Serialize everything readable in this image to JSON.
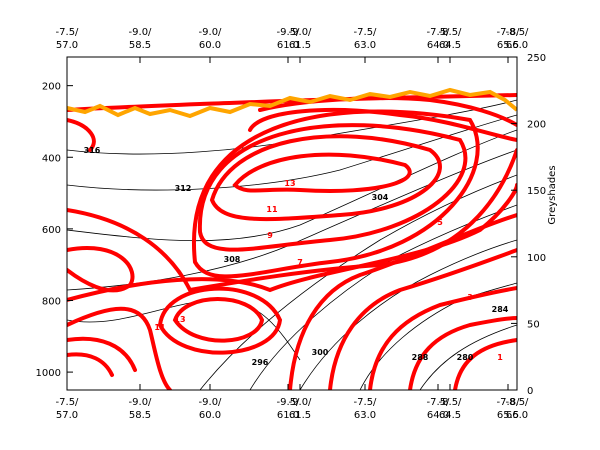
{
  "chart_data": {
    "type": "contour",
    "ylim": [
      1050,
      120
    ],
    "yticks": [
      200,
      400,
      600,
      800,
      1000
    ],
    "y2label": "Greyshades",
    "y2lim": [
      0,
      250
    ],
    "y2ticks": [
      0,
      50,
      100,
      150,
      200,
      250
    ],
    "xticks": [
      {
        "lon": "-7.5/",
        "label": "57.0"
      },
      {
        "lon": "-9.0/",
        "label": "58.5"
      },
      {
        "lon": "-9.0/",
        "label": "60.0"
      },
      {
        "lon": "-9.5/",
        "label": "61.0"
      },
      {
        "lon": "-9.0/",
        "label": "61.5"
      },
      {
        "lon": "-7.5/",
        "label": "63.0"
      },
      {
        "lon": "-7.5/",
        "label": "64.0"
      },
      {
        "lon": "-8.5/",
        "label": "64.5"
      },
      {
        "lon": "-7.8/",
        "label": "65.5"
      },
      {
        "lon": "-8.5/",
        "label": "66.0"
      }
    ],
    "annotations": [
      {
        "text": "13",
        "color": "#ff0000"
      },
      {
        "text": "11",
        "color": "#ff0000"
      },
      {
        "text": "9",
        "color": "#ff0000"
      },
      {
        "text": "7",
        "color": "#ff0000"
      },
      {
        "text": "5",
        "color": "#ff0000"
      },
      {
        "text": "3",
        "color": "#ff0000"
      },
      {
        "text": "1",
        "color": "#ff0000"
      },
      {
        "text": "13",
        "color": "#ff0000"
      },
      {
        "text": "11",
        "color": "#ff0000"
      },
      {
        "text": "312",
        "color": "#000000"
      },
      {
        "text": "316",
        "color": "#000000"
      },
      {
        "text": "308",
        "color": "#000000"
      },
      {
        "text": "304",
        "color": "#000000"
      },
      {
        "text": "300",
        "color": "#000000"
      },
      {
        "text": "296",
        "color": "#000000"
      },
      {
        "text": "288",
        "color": "#000000"
      },
      {
        "text": "280",
        "color": "#000000"
      },
      {
        "text": "284",
        "color": "#000000"
      }
    ]
  }
}
